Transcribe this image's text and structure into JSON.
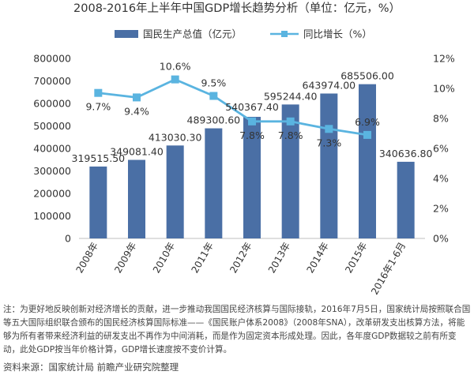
{
  "chart_data": {
    "type": "bar",
    "title": "2008-2016年上半年中国GDP增长趋势分析（单位：亿元，%）",
    "categories": [
      "2008年",
      "2009年",
      "2010年",
      "2011年",
      "2012年",
      "2013年",
      "2014年",
      "2015年",
      "2016年1-6月"
    ],
    "series": [
      {
        "name": "国民生产总值（亿元）",
        "type": "bar",
        "axis": "left",
        "color": "#4a6fa5",
        "values": [
          319515.5,
          349081.4,
          413030.3,
          489300.6,
          540367.4,
          595244.4,
          643974.0,
          685506.0,
          340636.8
        ],
        "labels": [
          "319515.50",
          "349081.40",
          "413030.30",
          "489300.60",
          "540367.40",
          "595244.40",
          "643974.00",
          "685506.00",
          "340636.80"
        ]
      },
      {
        "name": "同比增长（%）",
        "type": "line",
        "axis": "right",
        "color": "#5ab4e0",
        "values": [
          9.7,
          9.4,
          10.6,
          9.5,
          7.8,
          7.8,
          7.3,
          6.9,
          null
        ],
        "labels": [
          "9.7%",
          "9.4%",
          "10.6%",
          "9.5%",
          "7.8%",
          "7.8%",
          "7.3%",
          "6.9%",
          ""
        ]
      }
    ],
    "y_left": {
      "min": 0,
      "max": 800000,
      "ticks": [
        0,
        100000,
        200000,
        300000,
        400000,
        500000,
        600000,
        700000,
        800000
      ]
    },
    "y_right": {
      "min": 0,
      "max": 12,
      "ticks": [
        "0%",
        "2%",
        "4%",
        "6%",
        "8%",
        "10%",
        "12%"
      ]
    },
    "grid": false,
    "legend_position": "top"
  },
  "notes": {
    "text": "注：为更好地反映创新对经济增长的贡献，进一步推动我国国民经济核算与国际接轨，2016年7月5日，国家统计局按照联合国等五大国际组织联合颁布的国民经济核算国际标准——《国民账户体系2008》（2008年SNA），改革研发支出核算方法，将能够为所有者带来经济利益的研发支出不再作为中间消耗，而是作为固定资本形成处理。因此，各年度GDP数据较之前有所变动，此处GDP按当年价格计算，GDP增长速度按不变价计算。",
    "source": "资料来源：国家统计局 前瞻产业研究院整理"
  }
}
